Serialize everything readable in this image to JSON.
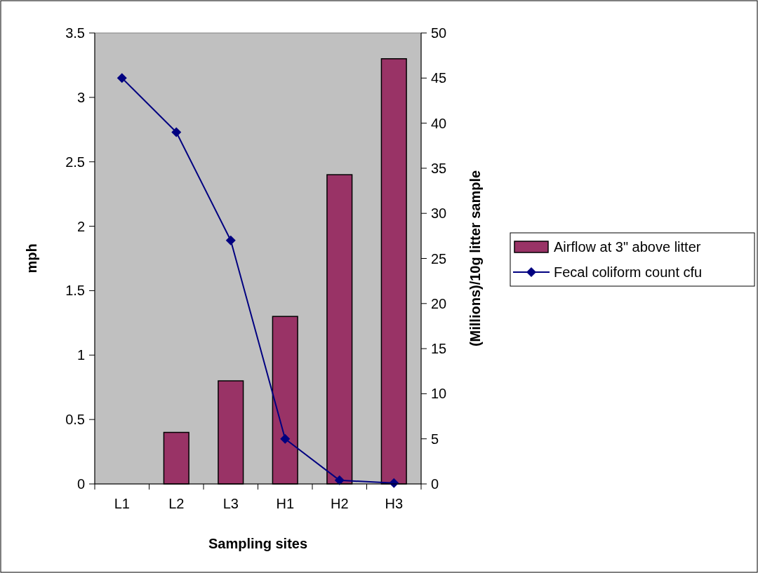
{
  "chart_data": {
    "type": "bar",
    "xlabel": "Sampling sites",
    "ylabel": "mph",
    "y2label": "(Millions)/10g litter sample",
    "categories": [
      "L1",
      "L2",
      "L3",
      "H1",
      "H2",
      "H3"
    ],
    "series": [
      {
        "name": "Airflow at 3\" above litter",
        "color": "#993366",
        "values": [
          null,
          0.4,
          0.8,
          1.3,
          2.4,
          3.3
        ]
      },
      {
        "name": "Fecal coliform count cfu",
        "type": "line",
        "axis": "y2",
        "color": "#000080",
        "marker": "diamond",
        "values": [
          45,
          39,
          27,
          5,
          0.4,
          0.1
        ]
      }
    ],
    "ylim": [
      0,
      3.5
    ],
    "yticks": [
      0,
      0.5,
      1,
      1.5,
      2,
      2.5,
      3,
      3.5
    ],
    "y2lim": [
      0,
      50
    ],
    "y2ticks": [
      0,
      5,
      10,
      15,
      20,
      25,
      30,
      35,
      40,
      45,
      50
    ],
    "grid": false,
    "legend": "right"
  }
}
